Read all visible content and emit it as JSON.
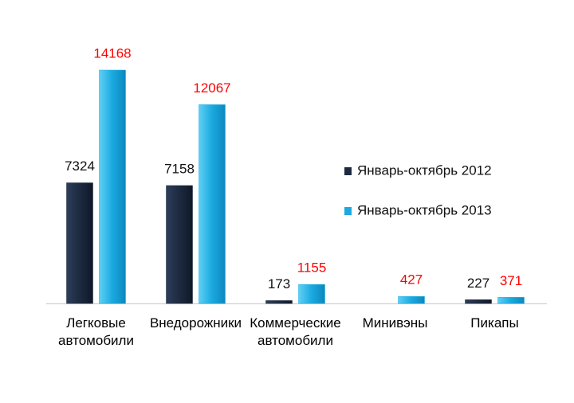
{
  "chart_data": {
    "type": "bar",
    "categories": [
      "Легковые автомобили",
      "Внедорожники",
      "Коммерческие автомобили",
      "Минивэны",
      "Пикапы"
    ],
    "series": [
      {
        "name": "Январь-октябрь 2012",
        "color": "#1c2a40",
        "label_color": "#111111",
        "values": [
          7324,
          7158,
          173,
          null,
          227
        ]
      },
      {
        "name": "Январь-октябрь 2013",
        "color": "#1aa9e0",
        "label_color": "#ff0000",
        "values": [
          14168,
          12067,
          1155,
          427,
          371
        ]
      }
    ],
    "legend": "right"
  }
}
